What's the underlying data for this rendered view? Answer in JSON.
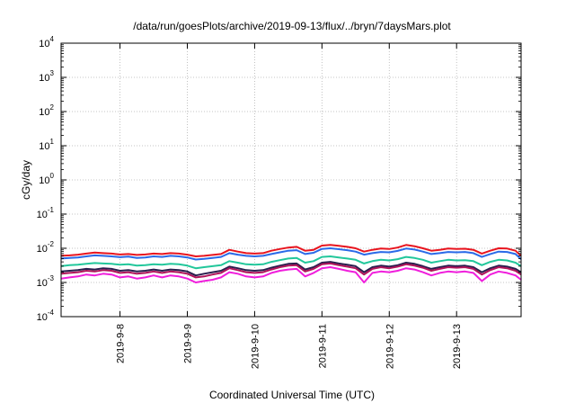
{
  "chart_data": {
    "type": "line",
    "title": "/data/run/goesPlots/archive/2019-09-13/flux/../bryn/7daysMars.plot",
    "xlabel": "Coordinated Universal Time (UTC)",
    "ylabel": "cGy/day",
    "y_scale": "log",
    "ylim": [
      0.0001,
      10000
    ],
    "y_ticks": [
      {
        "base": "10",
        "exp": "4"
      },
      {
        "base": "10",
        "exp": "3"
      },
      {
        "base": "10",
        "exp": "2"
      },
      {
        "base": "10",
        "exp": "1"
      },
      {
        "base": "10",
        "exp": "0"
      },
      {
        "base": "10",
        "exp": "-1"
      },
      {
        "base": "10",
        "exp": "-2"
      },
      {
        "base": "10",
        "exp": "-3"
      },
      {
        "base": "10",
        "exp": "-4"
      }
    ],
    "xlim": [
      "2019-09-07T03:00",
      "2019-09-13T23:00"
    ],
    "x_ticks": [
      "2019-9-8",
      "2019-9-9",
      "2019-9-10",
      "2019-9-11",
      "2019-9-12",
      "2019-9-13"
    ],
    "grid": true,
    "x": [
      "2019-09-07T03:00",
      "2019-09-07T06:00",
      "2019-09-07T09:00",
      "2019-09-07T12:00",
      "2019-09-07T15:00",
      "2019-09-07T18:00",
      "2019-09-07T21:00",
      "2019-09-08T00:00",
      "2019-09-08T03:00",
      "2019-09-08T06:00",
      "2019-09-08T09:00",
      "2019-09-08T12:00",
      "2019-09-08T15:00",
      "2019-09-08T18:00",
      "2019-09-08T21:00",
      "2019-09-09T00:00",
      "2019-09-09T03:00",
      "2019-09-09T06:00",
      "2019-09-09T09:00",
      "2019-09-09T12:00",
      "2019-09-09T15:00",
      "2019-09-09T18:00",
      "2019-09-09T21:00",
      "2019-09-10T00:00",
      "2019-09-10T03:00",
      "2019-09-10T06:00",
      "2019-09-10T09:00",
      "2019-09-10T12:00",
      "2019-09-10T15:00",
      "2019-09-10T18:00",
      "2019-09-10T21:00",
      "2019-09-11T00:00",
      "2019-09-11T03:00",
      "2019-09-11T06:00",
      "2019-09-11T09:00",
      "2019-09-11T12:00",
      "2019-09-11T15:00",
      "2019-09-11T18:00",
      "2019-09-11T21:00",
      "2019-09-12T00:00",
      "2019-09-12T03:00",
      "2019-09-12T06:00",
      "2019-09-12T09:00",
      "2019-09-12T12:00",
      "2019-09-12T15:00",
      "2019-09-12T18:00",
      "2019-09-12T21:00",
      "2019-09-13T00:00",
      "2019-09-13T03:00",
      "2019-09-13T06:00",
      "2019-09-13T09:00",
      "2019-09-13T12:00",
      "2019-09-13T15:00",
      "2019-09-13T18:00",
      "2019-09-13T21:00",
      "2019-09-13T23:00"
    ],
    "series": [
      {
        "color": "#e8141e",
        "values": [
          0.006,
          0.0062,
          0.0065,
          0.007,
          0.0075,
          0.0072,
          0.007,
          0.0066,
          0.0068,
          0.0064,
          0.0066,
          0.007,
          0.0068,
          0.0072,
          0.007,
          0.0065,
          0.0058,
          0.006,
          0.0064,
          0.0068,
          0.009,
          0.008,
          0.0072,
          0.007,
          0.0072,
          0.0085,
          0.0095,
          0.0105,
          0.011,
          0.0085,
          0.009,
          0.012,
          0.0125,
          0.0118,
          0.011,
          0.01,
          0.008,
          0.009,
          0.0098,
          0.0095,
          0.0105,
          0.0125,
          0.0115,
          0.01,
          0.0085,
          0.009,
          0.0098,
          0.0095,
          0.0097,
          0.009,
          0.007,
          0.0085,
          0.01,
          0.0098,
          0.0085,
          0.006
        ]
      },
      {
        "color": "#2a6ae8",
        "values": [
          0.005,
          0.0052,
          0.0054,
          0.0058,
          0.0062,
          0.006,
          0.0058,
          0.0055,
          0.0057,
          0.0052,
          0.0054,
          0.0058,
          0.0056,
          0.006,
          0.0058,
          0.0054,
          0.0047,
          0.0049,
          0.0052,
          0.0056,
          0.0072,
          0.0065,
          0.006,
          0.0058,
          0.006,
          0.0068,
          0.0076,
          0.0085,
          0.0088,
          0.0068,
          0.0074,
          0.0096,
          0.01,
          0.0094,
          0.0088,
          0.008,
          0.0065,
          0.0072,
          0.0078,
          0.0076,
          0.0084,
          0.0098,
          0.0092,
          0.008,
          0.0068,
          0.0072,
          0.0078,
          0.0076,
          0.0078,
          0.0072,
          0.0056,
          0.0068,
          0.008,
          0.0078,
          0.0068,
          0.0048
        ]
      },
      {
        "color": "#22c79b",
        "values": [
          0.003,
          0.0032,
          0.0033,
          0.0035,
          0.0037,
          0.0036,
          0.0035,
          0.0033,
          0.0034,
          0.0031,
          0.0032,
          0.0034,
          0.0033,
          0.0035,
          0.0034,
          0.0031,
          0.0026,
          0.0028,
          0.003,
          0.0032,
          0.0042,
          0.0038,
          0.0034,
          0.0033,
          0.0034,
          0.004,
          0.0045,
          0.005,
          0.0052,
          0.0038,
          0.0042,
          0.0056,
          0.0058,
          0.0054,
          0.005,
          0.0046,
          0.0036,
          0.0042,
          0.0046,
          0.0044,
          0.0048,
          0.0056,
          0.0052,
          0.0046,
          0.0038,
          0.0042,
          0.0046,
          0.0044,
          0.0045,
          0.0042,
          0.0032,
          0.004,
          0.0046,
          0.0044,
          0.0038,
          0.003
        ]
      },
      {
        "color": "#2a1e4e",
        "values": [
          0.0021,
          0.0022,
          0.0023,
          0.0025,
          0.0024,
          0.0026,
          0.0025,
          0.0022,
          0.0023,
          0.0021,
          0.0022,
          0.0024,
          0.0022,
          0.0024,
          0.0023,
          0.0021,
          0.0016,
          0.0018,
          0.002,
          0.0022,
          0.0029,
          0.0026,
          0.0023,
          0.0022,
          0.0023,
          0.0027,
          0.0031,
          0.0035,
          0.0036,
          0.0024,
          0.0028,
          0.0038,
          0.004,
          0.0036,
          0.0033,
          0.003,
          0.002,
          0.0028,
          0.0031,
          0.0029,
          0.0032,
          0.0038,
          0.0035,
          0.003,
          0.0025,
          0.0028,
          0.0031,
          0.003,
          0.0031,
          0.0028,
          0.002,
          0.0026,
          0.0031,
          0.0029,
          0.0025,
          0.002
        ]
      },
      {
        "color": "#b0145a",
        "values": [
          0.0018,
          0.0019,
          0.002,
          0.0022,
          0.0021,
          0.0023,
          0.0022,
          0.0019,
          0.002,
          0.0018,
          0.0019,
          0.0021,
          0.0019,
          0.0021,
          0.002,
          0.0018,
          0.0014,
          0.0015,
          0.0017,
          0.0019,
          0.0026,
          0.0023,
          0.002,
          0.0019,
          0.002,
          0.0024,
          0.0028,
          0.0031,
          0.0032,
          0.0021,
          0.0025,
          0.0034,
          0.0036,
          0.0032,
          0.0029,
          0.0026,
          0.0017,
          0.0025,
          0.0028,
          0.0026,
          0.0029,
          0.0034,
          0.0031,
          0.0027,
          0.0022,
          0.0025,
          0.0028,
          0.0027,
          0.0028,
          0.0025,
          0.0017,
          0.0023,
          0.0028,
          0.0026,
          0.0022,
          0.0017
        ]
      },
      {
        "color": "#f01edc",
        "values": [
          0.0013,
          0.0014,
          0.0015,
          0.0017,
          0.0016,
          0.0018,
          0.0017,
          0.0014,
          0.0015,
          0.0013,
          0.0014,
          0.0016,
          0.0014,
          0.0016,
          0.0015,
          0.0013,
          0.001,
          0.0011,
          0.0012,
          0.0014,
          0.002,
          0.0018,
          0.0015,
          0.0014,
          0.0015,
          0.0019,
          0.0022,
          0.0024,
          0.0025,
          0.0015,
          0.0019,
          0.0026,
          0.0028,
          0.0025,
          0.0022,
          0.002,
          0.001,
          0.0019,
          0.0021,
          0.002,
          0.0022,
          0.0026,
          0.0024,
          0.002,
          0.0016,
          0.0019,
          0.0021,
          0.002,
          0.0021,
          0.0019,
          0.0011,
          0.0017,
          0.0021,
          0.0019,
          0.0016,
          0.0012
        ]
      }
    ]
  }
}
